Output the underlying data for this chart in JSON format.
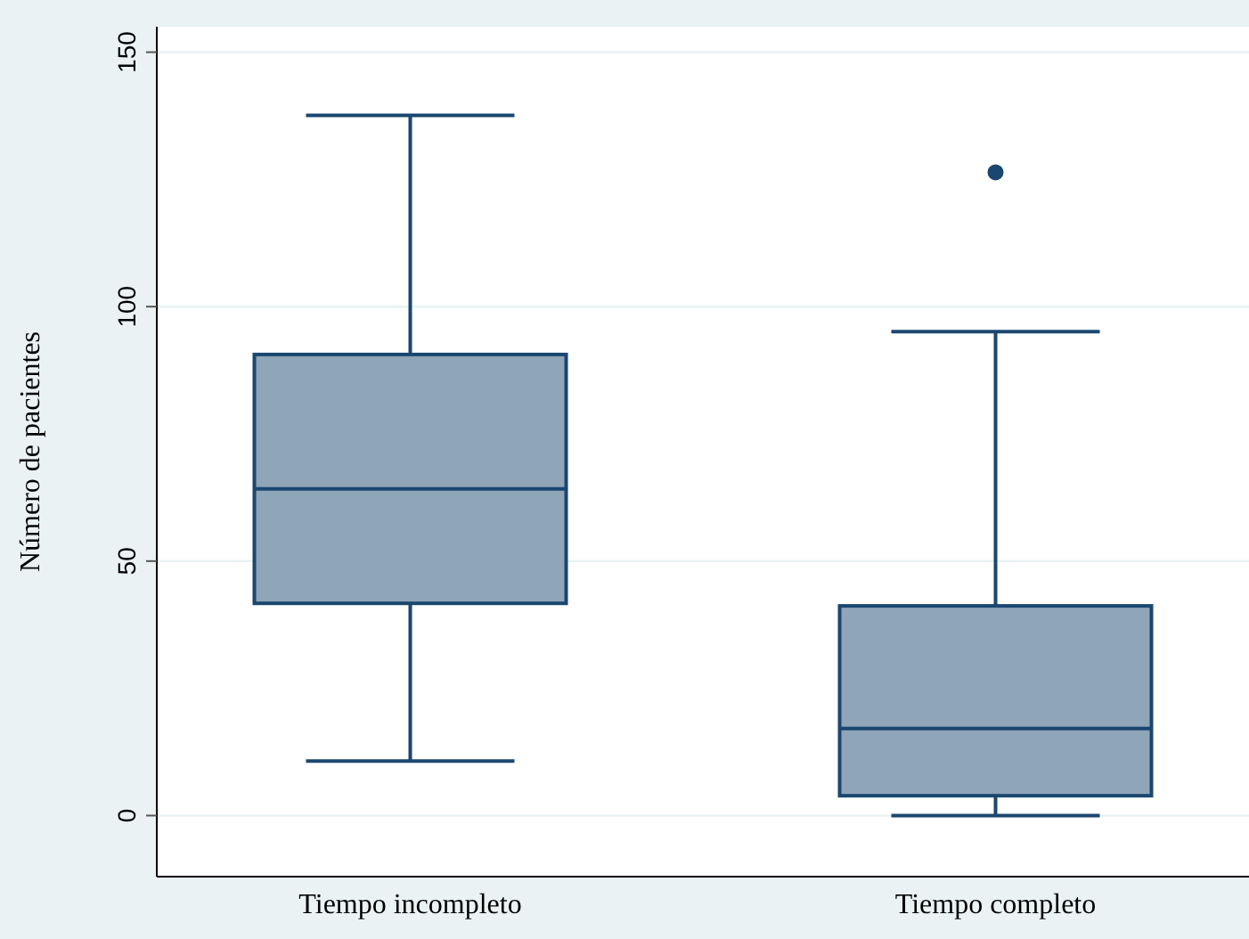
{
  "chart_data": {
    "type": "box",
    "ylabel": "Número de pacientes",
    "categories": [
      "Tiempo incompleto",
      "Tiempo completo"
    ],
    "boxes": [
      {
        "low": 10.7,
        "q1": 41.7,
        "median": 64.2,
        "q3": 90.6,
        "high": 137.6
      },
      {
        "low": 0,
        "q1": 3.9,
        "median": 17.1,
        "q3": 41.2,
        "high": 95.1,
        "outliers": [
          126.4
        ]
      }
    ],
    "color": "#8fa5b8",
    "ylim": [
      -12,
      155
    ],
    "yticks": [
      0,
      50,
      100,
      150
    ],
    "grid": "y"
  }
}
